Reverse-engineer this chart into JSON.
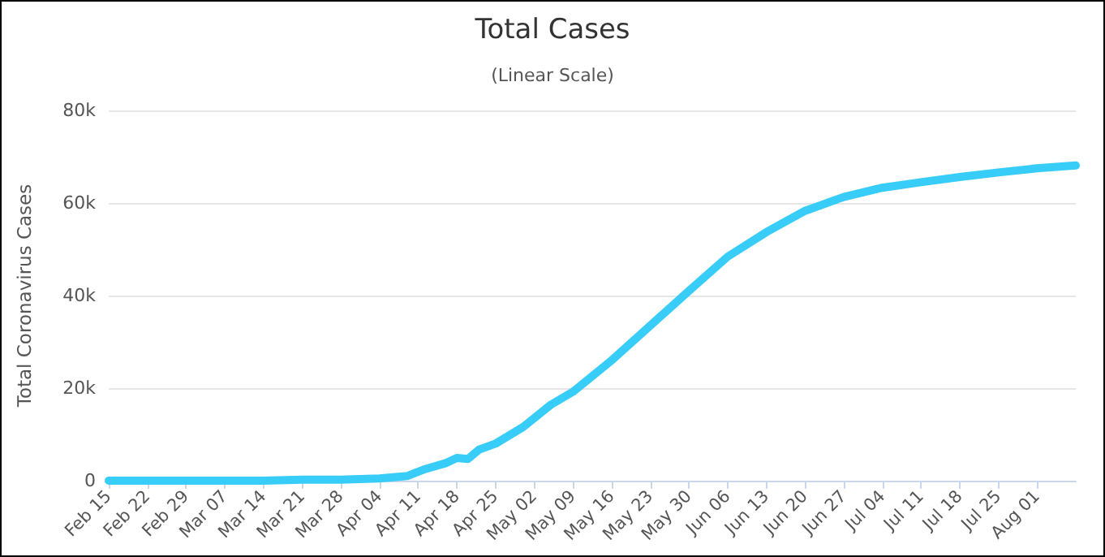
{
  "chart_data": {
    "type": "line",
    "title": "Total Cases",
    "subtitle": "(Linear Scale)",
    "ylabel": "Total Coronavirus Cases",
    "x": [
      "--02-15",
      "--02-29",
      "--03-14",
      "--03-21",
      "--03-28",
      "--04-04",
      "--04-07",
      "--04-09",
      "--04-12",
      "--04-16",
      "--04-18",
      "--04-20",
      "--04-22",
      "--04-25",
      "--04-30",
      "--05-05",
      "--05-09",
      "--05-16",
      "--05-23",
      "--05-30",
      "--06-06",
      "--06-13",
      "--06-20",
      "--06-27",
      "--07-04",
      "--07-11",
      "--07-18",
      "--07-25",
      "--08-01",
      "--08-08"
    ],
    "series": [
      {
        "color": "#38cdf8",
        "values": [
          0,
          0,
          0,
          200,
          200,
          500,
          800,
          1000,
          2400,
          3800,
          4900,
          4700,
          6700,
          8000,
          11600,
          16400,
          19200,
          26000,
          33500,
          41000,
          48400,
          53700,
          58300,
          61300,
          63300,
          64500,
          65600,
          66600,
          67500,
          68100
        ]
      }
    ],
    "xlim": [
      "--02-15",
      "--08-08"
    ],
    "xticks": [
      {
        "value": "--02-15",
        "label": "Feb 15"
      },
      {
        "value": "--02-22",
        "label": "Feb 22"
      },
      {
        "value": "--02-29",
        "label": "Feb 29"
      },
      {
        "value": "--03-07",
        "label": "Mar 07"
      },
      {
        "value": "--03-14",
        "label": "Mar 14"
      },
      {
        "value": "--03-21",
        "label": "Mar 21"
      },
      {
        "value": "--03-28",
        "label": "Mar 28"
      },
      {
        "value": "--04-04",
        "label": "Apr 04"
      },
      {
        "value": "--04-11",
        "label": "Apr 11"
      },
      {
        "value": "--04-18",
        "label": "Apr 18"
      },
      {
        "value": "--04-25",
        "label": "Apr 25"
      },
      {
        "value": "--05-02",
        "label": "May 02"
      },
      {
        "value": "--05-09",
        "label": "May 09"
      },
      {
        "value": "--05-16",
        "label": "May 16"
      },
      {
        "value": "--05-23",
        "label": "May 23"
      },
      {
        "value": "--05-30",
        "label": "May 30"
      },
      {
        "value": "--06-06",
        "label": "Jun 06"
      },
      {
        "value": "--06-13",
        "label": "Jun 13"
      },
      {
        "value": "--06-20",
        "label": "Jun 20"
      },
      {
        "value": "--06-27",
        "label": "Jun 27"
      },
      {
        "value": "--07-04",
        "label": "Jul 04"
      },
      {
        "value": "--07-11",
        "label": "Jul 11"
      },
      {
        "value": "--07-18",
        "label": "Jul 18"
      },
      {
        "value": "--07-25",
        "label": "Jul 25"
      },
      {
        "value": "--08-01",
        "label": "Aug 01"
      }
    ],
    "ylim": [
      0,
      80000
    ],
    "yticks": [
      {
        "value": 0,
        "label": "0"
      },
      {
        "value": 20000,
        "label": "20k"
      },
      {
        "value": 40000,
        "label": "40k"
      },
      {
        "value": 60000,
        "label": "60k"
      },
      {
        "value": 80000,
        "label": "80k"
      }
    ],
    "grid": "y",
    "marker": "none",
    "line_style": "solid"
  }
}
